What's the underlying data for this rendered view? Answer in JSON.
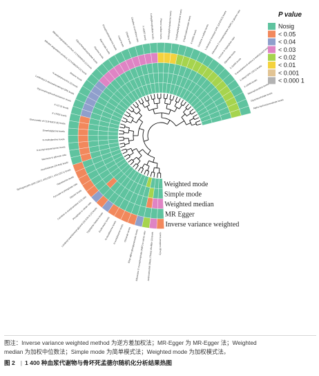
{
  "chart_data": {
    "type": "heatmap",
    "layout": "circular",
    "legend": {
      "title": "P value",
      "placement": "top-right",
      "items": [
        {
          "label": "Nosig",
          "color": "#5fc39f"
        },
        {
          "label": "< 0.05",
          "color": "#f2885c"
        },
        {
          "label": "< 0.04",
          "color": "#8f9fcc"
        },
        {
          "label": "< 0.03",
          "color": "#df84c4"
        },
        {
          "label": "< 0.02",
          "color": "#a6d44e"
        },
        {
          "label": "< 0.01",
          "color": "#f4d23d"
        },
        {
          "label": "< 0.001",
          "color": "#e2c494"
        },
        {
          "label": "< 0.000 1",
          "color": "#b3b3b3"
        }
      ]
    },
    "methods": [
      "Inverse variance weighted",
      "MR Egger",
      "Weighted median",
      "Simple mode",
      "Weighted mode"
    ],
    "metabolites": [
      "Cys-gly oxidized levels",
      "Androstenediol (3beta,17beta) disulfate (2) levels",
      "Adenosine 5'-monophosphate (AMP) to valine ratio",
      "Ethyl alpha-glucopyranoside levels",
      "Glutarate levels",
      "N-acetyltaurine levels",
      "N-oleoyltaurine levels",
      "Erythronate levels",
      "Tryptophan betaine levels",
      "Linoleoyl-arachidonoyl-glycerol (18:2/20:4) (2) levels",
      "Phosphate to citrate ratio",
      "Carnitine to acetylcarnitine (C2) ratio",
      "Glycine levels",
      "Pyruvate to phosphate ratio",
      "Hypotaurine levels",
      "Sphingomyelin (d18:1/20:2, d18:2/20:1, d16:1/22:1) levels",
      "Arachidonate (20:4n6) levels",
      "Mannose to glucose ratio",
      "N-acetyl-isoputreanine levels",
      "N-methylproline levels",
      "Dimethylglycine levels",
      "Glucuronide of C10H18O2 (8) levels",
      "X-17653 levels",
      "X-12731 levels",
      "Glycerophosphoethanolamine levels",
      "1-palmitoyl-2-docosahexaenoyl-GPE levels",
      "N-acetylkynurenine (2) levels",
      "Betaine levels",
      "Bilirubin degradation product, C17H18N2O4 (2) levels",
      "Bilirubin degradation product, C17H20N2O5 (1) levels",
      "Glycochenodeoxycholate levels",
      "Piperine levels",
      "Mannonate levels",
      "Phosphoethanolamine levels",
      "Uracil levels",
      "Citrate levels",
      "Citrulline to ornithine ratio",
      "X-16087 levels",
      "4-ethylphenylsulfate levels",
      "Phenol sulfate levels",
      "N-formylphenylalanine levels",
      "3-hydroxybutyrylcarnitine levels",
      "2-hydroxydecanoate levels",
      "X-24455 levels",
      "Cysteine s-sulfate levels",
      "1-stearoyl-2-linoleoyl-GPE (18:0/18:2) levels",
      "Adenosine 5'-monophosphate (AMP) to glycine ratio",
      "Leucine to tryptophan ratio",
      "Glycerate levels",
      "X-11444 levels",
      "5-acetylamino-6-amino-3-methyluracil levels",
      "1-oleoyl-GPC (18:1) levels",
      "X-24464 levels",
      "Stearoylcarnitine levels",
      "Glycohyocholate levels",
      "Alpha-hydroxyisovalerate levels"
    ],
    "values_note": "Each row is one method (ring); each entry is the legend index of that cell, listed in metabolite order.",
    "matrix": [
      [
        1,
        3,
        4,
        2,
        1,
        1,
        1,
        1,
        2,
        1,
        2,
        1,
        1,
        1,
        1,
        1,
        0,
        0,
        0,
        0,
        0,
        0,
        0,
        0,
        0,
        0,
        0,
        0,
        0,
        0,
        0,
        0,
        0,
        0,
        0,
        0,
        0,
        0,
        0,
        0,
        0,
        0,
        0,
        0,
        0,
        0,
        0,
        0,
        0,
        0,
        0,
        0,
        0,
        0,
        0,
        0
      ],
      [
        0,
        0,
        0,
        0,
        0,
        0,
        0,
        0,
        0,
        0,
        0,
        0,
        0,
        0,
        0,
        0,
        1,
        1,
        1,
        1,
        1,
        1,
        1,
        2,
        2,
        2,
        2,
        2,
        2,
        3,
        3,
        3,
        3,
        3,
        3,
        3,
        3,
        3,
        3,
        5,
        5,
        5,
        4,
        4,
        4,
        4,
        4,
        4,
        4,
        4,
        4,
        4,
        4,
        4,
        4,
        4
      ],
      [
        3,
        3,
        1,
        0,
        0,
        0,
        0,
        0,
        0,
        0,
        1,
        0,
        0,
        0,
        0,
        0,
        0,
        0,
        0,
        0,
        0,
        0,
        0,
        0,
        0,
        0,
        0,
        0,
        0,
        0,
        0,
        0,
        0,
        0,
        0,
        0,
        0,
        0,
        0,
        0,
        0,
        0,
        0,
        0,
        0,
        0,
        0,
        0,
        0,
        0,
        0,
        0,
        0,
        0,
        0,
        0
      ],
      [
        0,
        0,
        4,
        0,
        0,
        0,
        0,
        0,
        0,
        0,
        0,
        0,
        0,
        0,
        0,
        0,
        0,
        0,
        0,
        0,
        0,
        0,
        0,
        0,
        0,
        0,
        0,
        0,
        0,
        0,
        0,
        0,
        0,
        0,
        0,
        0,
        0,
        0,
        0,
        0,
        0,
        0,
        0,
        0,
        0,
        0,
        0,
        0,
        0,
        0,
        0,
        0,
        0,
        0,
        0,
        0
      ],
      [
        0,
        0,
        0,
        4,
        0,
        0,
        0,
        0,
        0,
        0,
        0,
        0,
        0,
        0,
        0,
        0,
        0,
        0,
        0,
        0,
        0,
        0,
        0,
        0,
        0,
        0,
        0,
        0,
        0,
        0,
        0,
        0,
        0,
        0,
        0,
        0,
        0,
        0,
        0,
        0,
        0,
        0,
        0,
        0,
        0,
        0,
        0,
        0,
        0,
        0,
        0,
        0,
        0,
        0,
        0,
        0
      ]
    ]
  },
  "caption": {
    "note_prefix": "图注：",
    "note_lines": [
      "图注：Inverse variance weighted method 为逆方差加权法；MR-Egger 为 MR-Egger 法；Weighted",
      "median 为加权中位数法；Simple mode 为简单模式法；Weighted mode 为加权模式法。"
    ],
    "figure_label": "图 2",
    "figure_title": "1 400 种血浆代谢物与骨坏死孟德尔随机化分析结果热图"
  }
}
